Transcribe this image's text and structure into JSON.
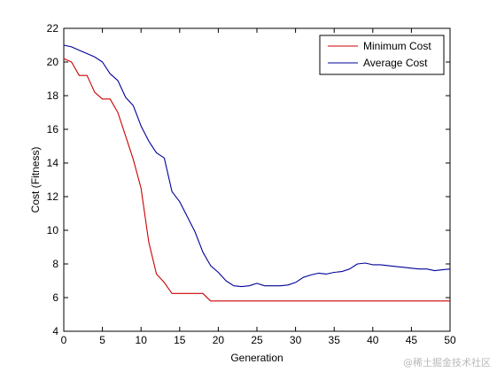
{
  "chart_data": {
    "type": "line",
    "xlabel": "Generation",
    "ylabel": "Cost (Fitness)",
    "xlim": [
      0,
      50
    ],
    "ylim": [
      4,
      22
    ],
    "xticks": [
      0,
      5,
      10,
      15,
      20,
      25,
      30,
      35,
      40,
      45,
      50
    ],
    "yticks": [
      4,
      6,
      8,
      10,
      12,
      14,
      16,
      18,
      20,
      22
    ],
    "grid": false,
    "legend_position": "top-right",
    "series": [
      {
        "name": "Minimum Cost",
        "color": "#cc0000",
        "x": [
          0,
          1,
          2,
          3,
          4,
          5,
          6,
          7,
          8,
          9,
          10,
          11,
          12,
          13,
          14,
          15,
          16,
          17,
          18,
          19,
          20,
          25,
          30,
          35,
          40,
          45,
          50
        ],
        "y": [
          20.2,
          20.0,
          19.2,
          19.2,
          18.2,
          17.8,
          17.8,
          17.0,
          15.6,
          14.2,
          12.5,
          9.3,
          7.4,
          6.9,
          6.25,
          6.25,
          6.25,
          6.25,
          6.25,
          5.8,
          5.8,
          5.8,
          5.8,
          5.8,
          5.8,
          5.8,
          5.8
        ]
      },
      {
        "name": "Average Cost",
        "color": "#000099",
        "x": [
          0,
          1,
          2,
          3,
          4,
          5,
          6,
          7,
          8,
          9,
          10,
          11,
          12,
          13,
          14,
          15,
          16,
          17,
          18,
          19,
          20,
          21,
          22,
          23,
          24,
          25,
          26,
          27,
          28,
          29,
          30,
          31,
          32,
          33,
          34,
          35,
          36,
          37,
          38,
          39,
          40,
          41,
          42,
          43,
          44,
          45,
          46,
          47,
          48,
          49,
          50
        ],
        "y": [
          21.0,
          20.9,
          20.7,
          20.5,
          20.3,
          20.0,
          19.3,
          18.9,
          17.9,
          17.4,
          16.2,
          15.3,
          14.6,
          14.3,
          12.3,
          11.7,
          10.8,
          9.9,
          8.7,
          7.9,
          7.5,
          7.0,
          6.7,
          6.65,
          6.7,
          6.85,
          6.7,
          6.7,
          6.7,
          6.75,
          6.9,
          7.2,
          7.35,
          7.45,
          7.4,
          7.5,
          7.55,
          7.7,
          8.0,
          8.05,
          7.95,
          7.95,
          7.9,
          7.85,
          7.8,
          7.75,
          7.7,
          7.7,
          7.6,
          7.65,
          7.7
        ]
      }
    ]
  },
  "watermark": "@稀土掘金技术社区"
}
